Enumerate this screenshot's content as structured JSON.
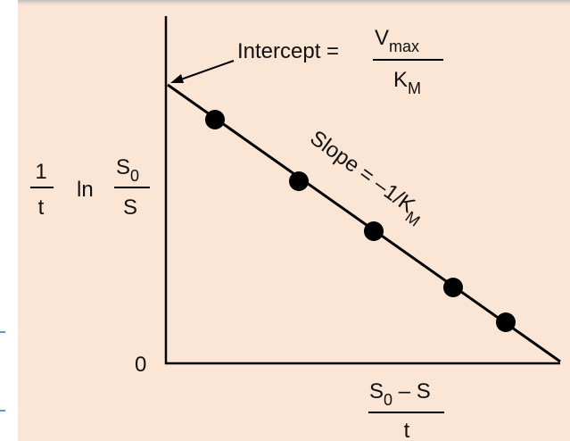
{
  "diagram": {
    "intercept": {
      "label": "Intercept =",
      "numerator": {
        "base": "V",
        "sub": "max"
      },
      "denominator": {
        "base": "K",
        "sub": "M"
      }
    },
    "y_axis": {
      "numerator": "1",
      "denominator": "t",
      "operator": "ln",
      "frac2_numerator": {
        "base": "S",
        "sub": "0"
      },
      "frac2_denominator": "S"
    },
    "origin": "0",
    "x_axis": {
      "numerator": {
        "base": "S",
        "sub": "0",
        "rest": " – S"
      },
      "denominator": "t"
    },
    "slope": {
      "label": "Slope = –1/K",
      "sub": "M"
    }
  }
}
